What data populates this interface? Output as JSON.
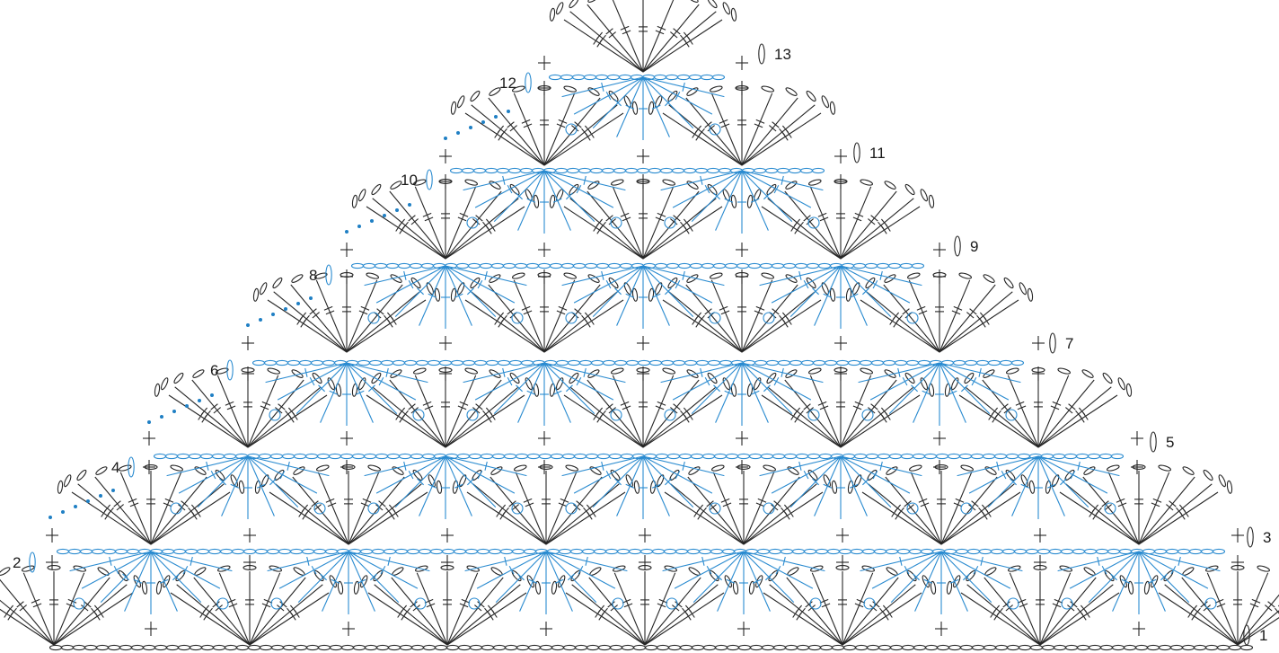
{
  "diagram": {
    "type": "crochet-chart",
    "colors": {
      "odd_rows": "#262626",
      "even_rows": "#2a8bd0",
      "background": "#ffffff"
    },
    "row_labels": [
      "1",
      "2",
      "3",
      "4",
      "5",
      "6",
      "7",
      "8",
      "9",
      "10",
      "11",
      "12",
      "13"
    ],
    "rows": [
      {
        "label": "1",
        "side": "right",
        "color": "black",
        "fans": 6
      },
      {
        "label": "2",
        "side": "left",
        "color": "blue",
        "fans": 6
      },
      {
        "label": "3",
        "side": "right",
        "color": "black",
        "fans": 6
      },
      {
        "label": "4",
        "side": "left",
        "color": "blue",
        "fans": 5
      },
      {
        "label": "5",
        "side": "right",
        "color": "black",
        "fans": 5
      },
      {
        "label": "6",
        "side": "left",
        "color": "blue",
        "fans": 4
      },
      {
        "label": "7",
        "side": "right",
        "color": "black",
        "fans": 4
      },
      {
        "label": "8",
        "side": "left",
        "color": "blue",
        "fans": 3
      },
      {
        "label": "9",
        "side": "right",
        "color": "black",
        "fans": 3
      },
      {
        "label": "10",
        "side": "left",
        "color": "blue",
        "fans": 2
      },
      {
        "label": "11",
        "side": "right",
        "color": "black",
        "fans": 2
      },
      {
        "label": "12",
        "side": "left",
        "color": "blue",
        "fans": 1
      },
      {
        "label": "13",
        "side": "right",
        "color": "black",
        "fans": 1
      }
    ],
    "symbols": [
      "chain",
      "single-crochet",
      "double-crochet",
      "treble-crochet",
      "slip-stitch",
      "picot"
    ]
  }
}
